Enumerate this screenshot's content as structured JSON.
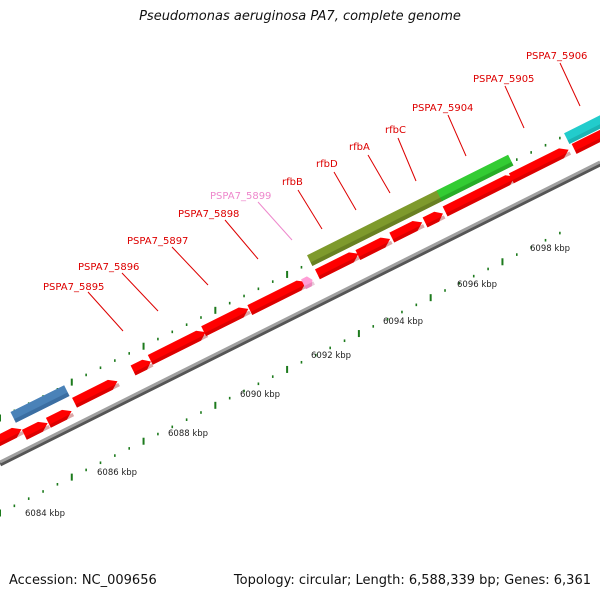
{
  "title": "Pseudomonas aeruginosa PA7, complete genome",
  "footer": {
    "accession": "Accession: NC_009656",
    "summary": "Topology: circular; Length: 6,588,339 bp; Genes: 6,361"
  },
  "colors": {
    "gene_red": "#ff0000",
    "gene_pink": "#ff9ed6",
    "rfb_olive": "#7e9a2c",
    "green": "#33cc33",
    "blue": "#4a82b8",
    "cyan": "#22cccc",
    "backbone": "#a0a0a0",
    "tick": "#1c7a1c",
    "label_red": "#dd0000",
    "label_pink": "#ee88cc"
  },
  "scale_labels": [
    "6084 kbp",
    "6086 kbp",
    "6088 kbp",
    "6090 kbp",
    "6092 kbp",
    "6094 kbp",
    "6096 kbp",
    "6098 kbp"
  ],
  "gene_labels": [
    {
      "text": "PSPA7_5895",
      "color": "red"
    },
    {
      "text": "PSPA7_5896",
      "color": "red"
    },
    {
      "text": "PSPA7_5897",
      "color": "red"
    },
    {
      "text": "PSPA7_5898",
      "color": "red"
    },
    {
      "text": "PSPA7_5899",
      "color": "pink"
    },
    {
      "text": "rfbB",
      "color": "red"
    },
    {
      "text": "rfbD",
      "color": "red"
    },
    {
      "text": "rfbA",
      "color": "red"
    },
    {
      "text": "rfbC",
      "color": "red"
    },
    {
      "text": "PSPA7_5904",
      "color": "red"
    },
    {
      "text": "PSPA7_5905",
      "color": "red"
    },
    {
      "text": "PSPA7_5906",
      "color": "red"
    }
  ]
}
